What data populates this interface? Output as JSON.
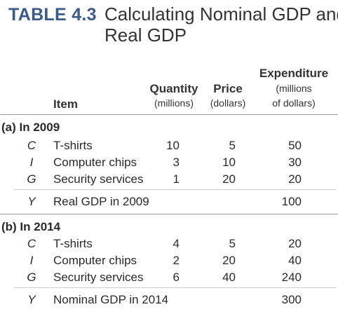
{
  "table": {
    "label": "TABLE 4.3",
    "title_line1": "Calculating Nominal GDP and",
    "title_line2": "Real GDP",
    "headers": {
      "item": "Item",
      "quantity": "Quantity",
      "quantity_unit": "(millions)",
      "price": "Price",
      "price_unit": "(dollars)",
      "expenditure": "Expenditure",
      "expenditure_unit1": "(millions",
      "expenditure_unit2": "of dollars)"
    },
    "sections": [
      {
        "label": "(a) In 2009",
        "rows": [
          {
            "symbol": "C",
            "item": "T-shirts",
            "quantity": "10",
            "price": "5",
            "expenditure": "50"
          },
          {
            "symbol": "I",
            "item": "Computer chips",
            "quantity": "3",
            "price": "10",
            "expenditure": "30"
          },
          {
            "symbol": "G",
            "item": "Security services",
            "quantity": "1",
            "price": "20",
            "expenditure": "20"
          }
        ],
        "total": {
          "symbol": "Y",
          "item": "Real GDP in 2009",
          "expenditure": "100"
        }
      },
      {
        "label": "(b) In 2014",
        "rows": [
          {
            "symbol": "C",
            "item": "T-shirts",
            "quantity": "4",
            "price": "5",
            "expenditure": "20"
          },
          {
            "symbol": "I",
            "item": "Computer chips",
            "quantity": "2",
            "price": "20",
            "expenditure": "40"
          },
          {
            "symbol": "G",
            "item": "Security services",
            "quantity": "6",
            "price": "40",
            "expenditure": "240"
          }
        ],
        "total": {
          "symbol": "Y",
          "item": "Nominal GDP in 2014",
          "expenditure": "300"
        }
      }
    ]
  }
}
